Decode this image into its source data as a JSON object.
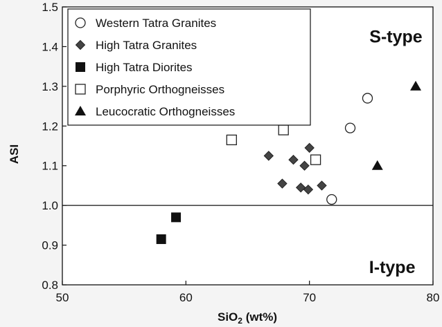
{
  "chart_data": {
    "type": "scatter",
    "xlabel": "SiO",
    "xlabel_sub": "2",
    "xlabel_suffix": " (wt%)",
    "ylabel": "ASI",
    "xlim": [
      50,
      80
    ],
    "ylim": [
      0.8,
      1.5
    ],
    "xticks": [
      "50",
      "60",
      "70",
      "80"
    ],
    "yticks": [
      "0.8",
      "0.9",
      "1.0",
      "1.1",
      "1.2",
      "1.3",
      "1.4",
      "1.5"
    ],
    "reference_line": {
      "y": 1.0
    },
    "annotations": [
      {
        "text": "S-type",
        "x": 77,
        "y": 1.41
      },
      {
        "text": "I-type",
        "x": 76.7,
        "y": 0.83
      }
    ],
    "legend_position": "top-left",
    "series": [
      {
        "name": "Western Tatra Granites",
        "marker": "circle-open",
        "points": [
          [
            71.8,
            1.015
          ],
          [
            73.3,
            1.195
          ],
          [
            74.7,
            1.27
          ]
        ]
      },
      {
        "name": "High Tatra Granites",
        "marker": "diamond-filled",
        "points": [
          [
            66.7,
            1.125
          ],
          [
            67.8,
            1.055
          ],
          [
            68.7,
            1.115
          ],
          [
            69.3,
            1.045
          ],
          [
            69.6,
            1.1
          ],
          [
            69.9,
            1.04
          ],
          [
            70,
            1.145
          ],
          [
            71,
            1.05
          ]
        ]
      },
      {
        "name": "High Tatra Diorites",
        "marker": "square-filled",
        "points": [
          [
            58,
            0.915
          ],
          [
            59.2,
            0.97
          ]
        ]
      },
      {
        "name": "Porphyric Orthogneisses",
        "marker": "square-open",
        "points": [
          [
            63.7,
            1.165
          ],
          [
            67.9,
            1.19
          ],
          [
            70.5,
            1.115
          ]
        ]
      },
      {
        "name": "Leucocratic Orthogneisses",
        "marker": "triangle-filled",
        "points": [
          [
            75.5,
            1.1
          ],
          [
            78.6,
            1.3
          ]
        ]
      }
    ]
  }
}
